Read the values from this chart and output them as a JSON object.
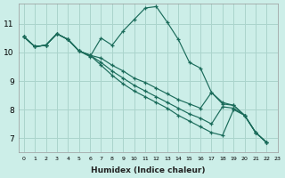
{
  "xlabel": "Humidex (Indice chaleur)",
  "bg_color": "#cceee8",
  "grid_color": "#aad4cc",
  "line_color": "#1a6b5a",
  "xlim": [
    -0.5,
    23
  ],
  "ylim": [
    6.5,
    11.7
  ],
  "xticks": [
    0,
    1,
    2,
    3,
    4,
    5,
    6,
    7,
    8,
    9,
    10,
    11,
    12,
    13,
    14,
    15,
    16,
    17,
    18,
    19,
    20,
    21,
    22,
    23
  ],
  "yticks": [
    7,
    8,
    9,
    10,
    11
  ],
  "series": [
    [
      10.55,
      10.2,
      10.25,
      10.65,
      10.45,
      10.05,
      9.85,
      10.5,
      10.25,
      10.75,
      11.15,
      11.55,
      11.6,
      11.05,
      10.45,
      9.65,
      9.45,
      8.6,
      8.2,
      8.15,
      7.8,
      7.2,
      6.85
    ],
    [
      10.55,
      10.2,
      10.25,
      10.65,
      10.45,
      10.05,
      9.9,
      9.8,
      9.55,
      9.35,
      9.1,
      8.95,
      8.75,
      8.55,
      8.35,
      8.2,
      8.05,
      8.6,
      8.25,
      8.15,
      7.8,
      7.2,
      6.85
    ],
    [
      10.55,
      10.2,
      10.25,
      10.65,
      10.45,
      10.05,
      9.9,
      9.65,
      9.35,
      9.1,
      8.85,
      8.65,
      8.45,
      8.25,
      8.05,
      7.85,
      7.7,
      7.5,
      8.1,
      8.05,
      7.8,
      7.2,
      6.85
    ],
    [
      10.55,
      10.2,
      10.25,
      10.65,
      10.45,
      10.05,
      9.9,
      9.55,
      9.2,
      8.9,
      8.65,
      8.45,
      8.25,
      8.05,
      7.8,
      7.6,
      7.4,
      7.2,
      7.1,
      8.0,
      7.8,
      7.2,
      6.85
    ]
  ]
}
